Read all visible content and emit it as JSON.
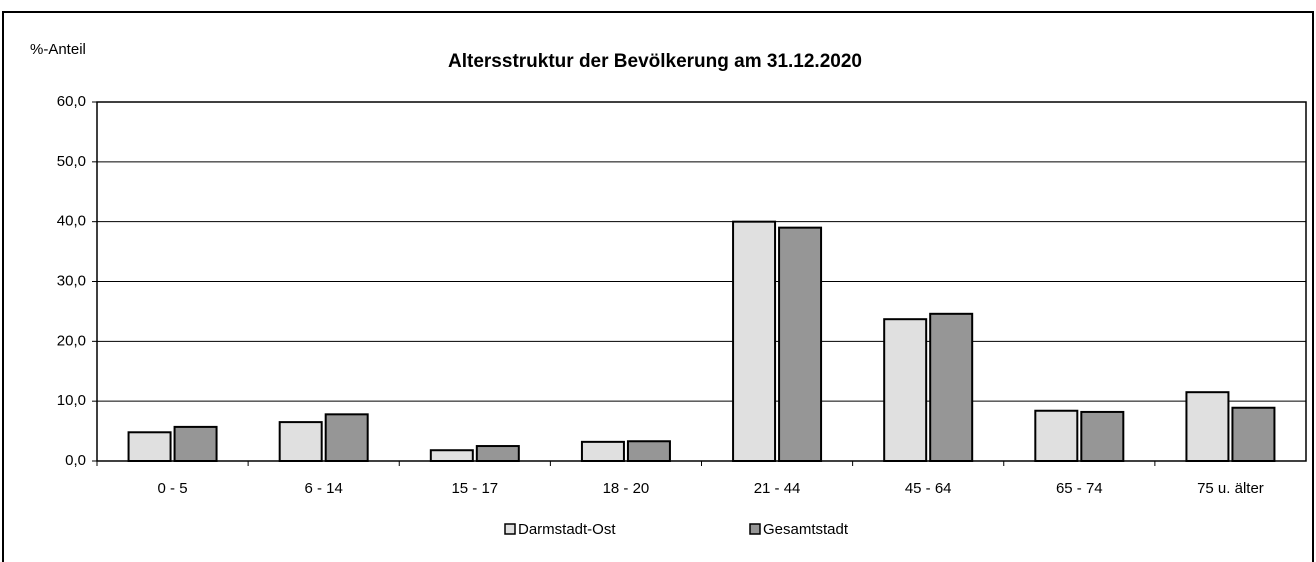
{
  "chart_data": {
    "type": "bar",
    "title": "Altersstruktur der Bevölkerung am 31.12.2020",
    "y_label": "%-Anteil",
    "categories": [
      "0 -  5",
      "6 - 14",
      "15 - 17",
      "18 - 20",
      "21 - 44",
      "45 - 64",
      "65 - 74",
      "75 u. älter"
    ],
    "series": [
      {
        "name": "Darmstadt-Ost",
        "color": "#e0e0e0",
        "values": [
          4.8,
          6.5,
          1.8,
          3.2,
          40.0,
          23.7,
          8.4,
          11.5
        ]
      },
      {
        "name": "Gesamtstadt",
        "color": "#969696",
        "values": [
          5.7,
          7.8,
          2.5,
          3.3,
          39.0,
          24.6,
          8.2,
          8.9
        ]
      }
    ],
    "ylim": [
      0,
      60
    ],
    "yticks": [
      {
        "value": 0,
        "label": "0,0"
      },
      {
        "value": 10,
        "label": "10,0"
      },
      {
        "value": 20,
        "label": "20,0"
      },
      {
        "value": 30,
        "label": "30,0"
      },
      {
        "value": 40,
        "label": "40,0"
      },
      {
        "value": 50,
        "label": "50,0"
      },
      {
        "value": 60,
        "label": "60,0"
      }
    ],
    "grid": true,
    "legend": "bottom"
  }
}
